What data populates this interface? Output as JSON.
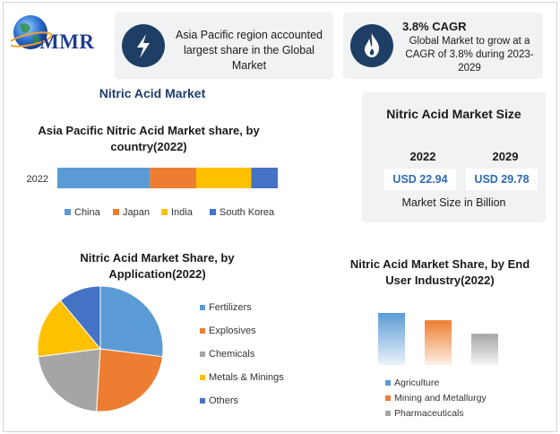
{
  "brand": {
    "logo_text": "MMR"
  },
  "highlights": {
    "region_text": "Asia Pacific region accounted largest share in the Global Market",
    "cagr_title": "3.8% CAGR",
    "cagr_text": "Global Market to grow at a CAGR of 3.8% during 2023-2029"
  },
  "main_title": "Nitric Acid Market",
  "market_size": {
    "title": "Nitric Acid Market Size",
    "years": [
      "2022",
      "2029"
    ],
    "values": [
      "USD 22.94",
      "USD 29.78"
    ],
    "note": "Market Size in Billion"
  },
  "colors": {
    "China": "#5b9bd5",
    "Japan": "#ed7d31",
    "India": "#ffc000",
    "South Korea": "#4472c4",
    "Chemicals": "#a5a5a5",
    "dark_blue": "#1f3e66"
  },
  "chart_data": [
    {
      "type": "bar",
      "orientation": "horizontal-stacked",
      "title": "Asia Pacific Nitric Acid Market share, by country(2022)",
      "categories": [
        "2022"
      ],
      "series": [
        {
          "name": "China",
          "values": [
            42
          ]
        },
        {
          "name": "Japan",
          "values": [
            21
          ]
        },
        {
          "name": "India",
          "values": [
            25
          ]
        },
        {
          "name": "South Korea",
          "values": [
            12
          ]
        }
      ],
      "legend": "bottom"
    },
    {
      "type": "pie",
      "title": "Nitric Acid Market Share, by Application(2022)",
      "labels": [
        "Fertilizers",
        "Explosives",
        "Chemicals",
        "Metals & Minings",
        "Others"
      ],
      "values": [
        27,
        24,
        22,
        16,
        11
      ],
      "legend": "right"
    },
    {
      "type": "bar",
      "title": "Nitric Acid Market Share, by End User Industry(2022)",
      "categories": [
        "Agriculture",
        "Mining and Metallurgy",
        "Pharmaceuticals"
      ],
      "values": [
        100,
        86,
        60
      ],
      "legend": "bottom"
    }
  ]
}
